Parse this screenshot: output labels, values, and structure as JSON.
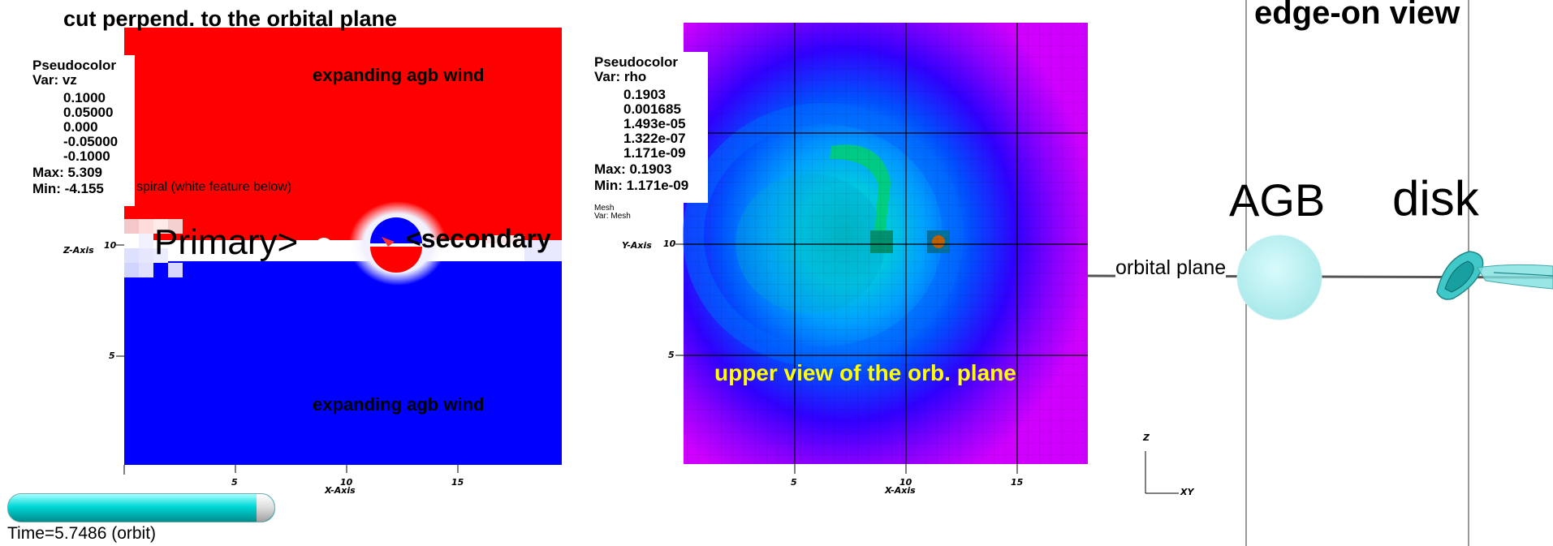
{
  "left": {
    "title": "cut perpend. to the orbital plane",
    "legend": {
      "title": "Pseudocolor",
      "var": "Var: vz",
      "levels": [
        "0.1000",
        "0.05000",
        "0.000",
        "-0.05000",
        "-0.1000"
      ],
      "max": "Max:  5.309",
      "min": "Min:  -4.155",
      "colors": [
        "#ff0000",
        "#ffffff",
        "#0000ff"
      ]
    },
    "annotations": {
      "top_wind": "expanding agb wind",
      "bottom_wind": "expanding agb wind",
      "spiral": "spiral (white feature below)",
      "primary": "Primary>",
      "secondary": "<secondary"
    },
    "z_axis_label": "Z-Axis",
    "x_axis_label": "X-Axis",
    "x_ticks": [
      "5",
      "10",
      "15"
    ],
    "y_ticks": [
      "10",
      "5"
    ],
    "time": "Time=5.7486 (orbit)",
    "time_progress": 1.0
  },
  "middle": {
    "legend": {
      "title": "Pseudocolor",
      "var": "Var: rho",
      "levels": [
        "0.1903",
        "0.001685",
        "1.493e-05",
        "1.322e-07",
        "1.171e-09"
      ],
      "max": "Max:  0.1903",
      "min": "Min:  1.171e-09",
      "colors": [
        "#ff0000",
        "#ffff00",
        "#00ff00",
        "#00ffff",
        "#0000ff",
        "#ff00ff"
      ]
    },
    "mesh_title": "Mesh",
    "mesh_var": "Var: Mesh",
    "annotation": "upper view of the orb. plane",
    "annotation_color": "#ffff00",
    "y_axis_label": "Y-Axis",
    "x_axis_label": "X-Axis",
    "x_ticks": [
      "5",
      "10",
      "15"
    ],
    "y_ticks": [
      "10",
      "5"
    ]
  },
  "right": {
    "title": "edge-on view",
    "agb_label": "AGB",
    "disk_label": "disk",
    "orbital_plane_label": "orbital plane",
    "triad_z": "Z",
    "triad_xy": "XY"
  }
}
